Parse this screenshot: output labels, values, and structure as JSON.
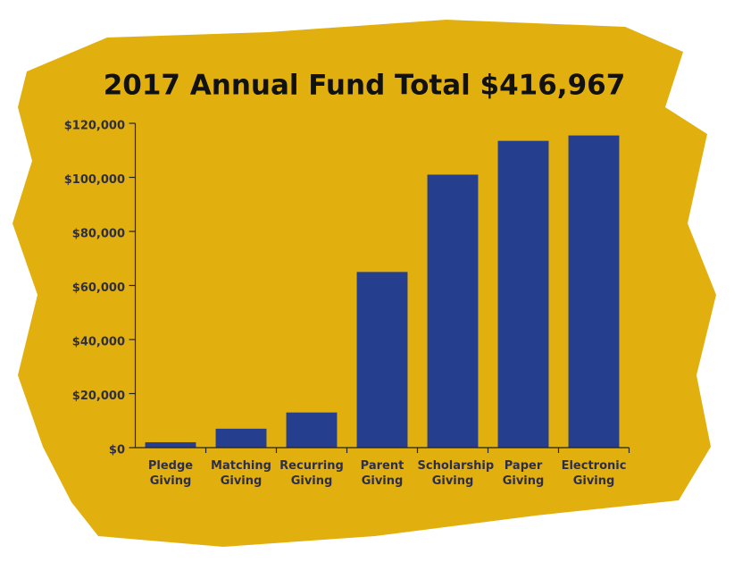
{
  "chart_data": {
    "type": "bar",
    "title": "2017 Annual Fund Total $416,967",
    "categories": [
      "Pledge Giving",
      "Matching Giving",
      "Recurring Giving",
      "Parent Giving",
      "Scholarship Giving",
      "Paper Giving",
      "Electronic Giving"
    ],
    "values": [
      2000,
      7000,
      13000,
      65000,
      101000,
      113500,
      115500
    ],
    "color": "#253f8e",
    "ylim": [
      0,
      120000
    ],
    "yticks": [
      {
        "value": 0,
        "label": "$0"
      },
      {
        "value": 20000,
        "label": "$20,000"
      },
      {
        "value": 40000,
        "label": "$40,000"
      },
      {
        "value": 60000,
        "label": "$60,000"
      },
      {
        "value": 80000,
        "label": "$80,000"
      },
      {
        "value": 100000,
        "label": "$100,000"
      },
      {
        "value": 120000,
        "label": "$120,000"
      }
    ],
    "grid": false
  }
}
